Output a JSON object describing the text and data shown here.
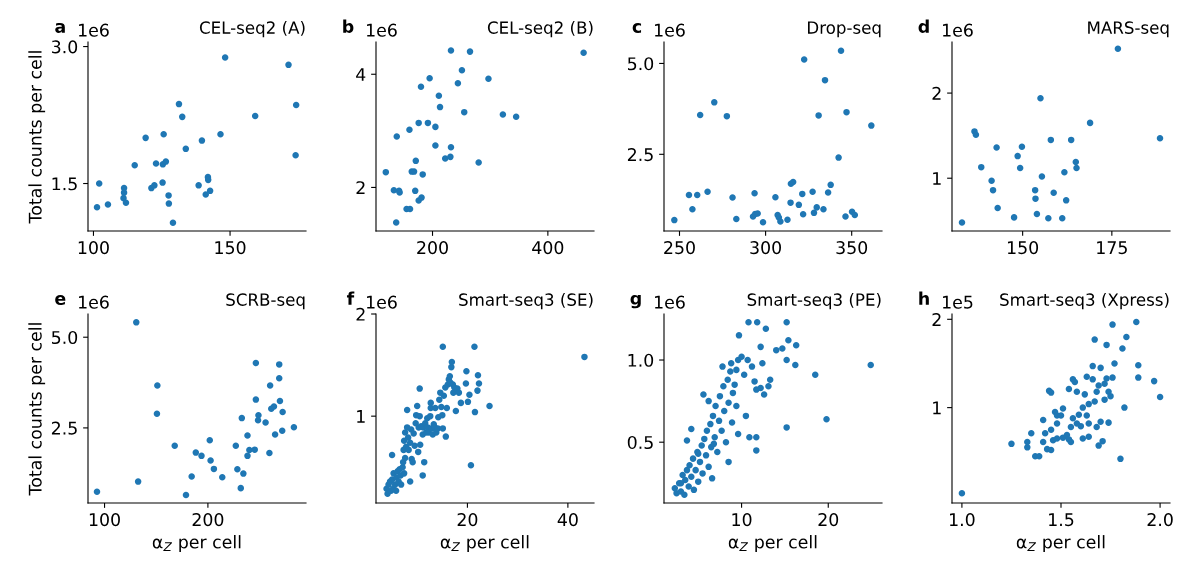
{
  "chart_data": [
    {
      "type": "scatter",
      "title": "CEL-seq2 (A)",
      "ylabel": "Total counts per cell",
      "annotations": [
        "a",
        "1e6"
      ],
      "marker": "circle",
      "color": "#1f77b4",
      "grid": false,
      "legend": false,
      "xlim": [
        98,
        177.8
      ],
      "ylim": [
        0.98,
        3.05
      ],
      "xticks": [
        100,
        150
      ],
      "yticks": [
        1.5,
        {
          "value": 3,
          "label": "3.0"
        }
      ],
      "x": [
        101.3,
        102.1,
        105.3,
        111.2,
        111.2,
        111.0,
        111.9,
        115.1,
        119.1,
        121.2,
        122.3,
        122.9,
        125.4,
        125.3,
        125.7,
        126.5,
        127.5,
        127.6,
        129.1,
        131.3,
        132.5,
        133.8,
        138.5,
        139.7,
        141.1,
        141.9,
        142.0,
        142.7,
        146.5,
        148.2,
        159.2,
        171.4,
        174.2,
        174.0
      ],
      "values": [
        1.24,
        1.5,
        1.27,
        1.45,
        1.4,
        1.34,
        1.29,
        1.7,
        2.0,
        1.45,
        1.48,
        1.72,
        1.71,
        1.51,
        2.04,
        1.74,
        1.37,
        1.28,
        1.07,
        2.37,
        2.23,
        1.88,
        1.48,
        1.97,
        1.38,
        1.57,
        1.54,
        1.42,
        2.04,
        2.88,
        2.24,
        2.8,
        2.36,
        1.81
      ]
    },
    {
      "type": "scatter",
      "title": "CEL-seq2 (B)",
      "annotations": [
        "b",
        "1e6"
      ],
      "marker": "circle",
      "color": "#1f77b4",
      "grid": false,
      "legend": false,
      "xlim": [
        102,
        480
      ],
      "ylim": [
        1.23,
        4.57
      ],
      "xticks": [
        200,
        400
      ],
      "yticks": [
        2,
        4
      ],
      "x": [
        119,
        133,
        138,
        142,
        143,
        137,
        155,
        161,
        160,
        164,
        168,
        171,
        170,
        176,
        181,
        183,
        176,
        180,
        192,
        195,
        205,
        205,
        211,
        213,
        222,
        231,
        232,
        232,
        244,
        251,
        255,
        265,
        280,
        297,
        322,
        345,
        462
      ],
      "values": [
        2.27,
        1.95,
        2.9,
        1.94,
        1.91,
        1.38,
        1.62,
        1.62,
        3.02,
        2.28,
        2.28,
        2.47,
        1.94,
        1.77,
        1.82,
        2.23,
        3.14,
        3.78,
        3.14,
        3.93,
        3.07,
        2.74,
        3.62,
        3.42,
        2.51,
        2.54,
        2.71,
        4.42,
        3.84,
        4.07,
        3.33,
        4.4,
        2.44,
        3.92,
        3.29,
        3.25,
        4.38
      ]
    },
    {
      "type": "scatter",
      "title": "Drop-seq",
      "annotations": [
        "c",
        "1e6"
      ],
      "marker": "circle",
      "color": "#1f77b4",
      "grid": false,
      "legend": false,
      "xlim": [
        241,
        367.6
      ],
      "ylim": [
        0.39,
        5.59
      ],
      "xticks": [
        250,
        300,
        350
      ],
      "yticks": [
        2.5,
        {
          "value": 5,
          "label": "5.0"
        }
      ],
      "x": [
        247,
        255.5,
        257.5,
        260.3,
        262,
        266.3,
        270.2,
        277.5,
        280.8,
        283,
        292.7,
        293.6,
        294,
        295.4,
        298.5,
        305.7,
        307,
        307.7,
        308.6,
        312.7,
        314.5,
        314.7,
        316,
        319.3,
        321.3,
        321.8,
        322.4,
        327.3,
        328.1,
        329.7,
        330.8,
        333.6,
        334.5,
        336.3,
        337.8,
        342.4,
        343.8,
        346.4,
        347,
        350.2,
        351.8,
        361.4
      ],
      "values": [
        0.69,
        1.38,
        0.99,
        1.38,
        3.58,
        1.47,
        3.93,
        3.55,
        1.31,
        0.72,
        0.79,
        1.43,
        0.86,
        0.87,
        0.63,
        1.32,
        0.83,
        0.76,
        0.65,
        0.7,
        1.17,
        1.69,
        1.74,
        1.11,
        1.41,
        0.85,
        5.11,
        1.47,
        0.89,
        1.04,
        3.57,
        0.99,
        4.54,
        1.45,
        1.66,
        2.41,
        5.35,
        0.79,
        3.66,
        0.92,
        0.83,
        3.29
      ]
    },
    {
      "type": "scatter",
      "title": "MARS-seq",
      "annotations": [
        "d",
        "1e6"
      ],
      "marker": "circle",
      "color": "#1f77b4",
      "grid": false,
      "legend": false,
      "xlim": [
        130.2,
        191.3
      ],
      "ylim": [
        0.38,
        2.6
      ],
      "xticks": [
        150,
        175
      ],
      "yticks": [
        1,
        2
      ],
      "x": [
        133,
        136.5,
        136.9,
        138.4,
        141.3,
        141.7,
        142.7,
        143,
        147.6,
        148.6,
        149.3,
        149.8,
        153.5,
        153.6,
        154,
        155,
        155.4,
        157.2,
        157.9,
        158.7,
        161.1,
        161.7,
        162.2,
        163.6,
        164.9,
        165.1,
        168.9,
        176.7,
        188.5
      ],
      "values": [
        0.48,
        1.55,
        1.51,
        1.13,
        0.97,
        0.86,
        1.36,
        0.65,
        0.54,
        1.26,
        1.12,
        1.37,
        0.86,
        0.76,
        0.58,
        1.94,
        1.02,
        0.53,
        1.45,
        0.83,
        0.53,
        1.07,
        0.74,
        1.45,
        1.19,
        1.12,
        1.65,
        2.52,
        1.47
      ]
    },
    {
      "type": "scatter",
      "title": "SCRB-seq",
      "xlabel": "α$_{Z}$ per cell",
      "ylabel": "Total counts per cell",
      "annotations": [
        "e",
        "1e6"
      ],
      "marker": "circle",
      "color": "#1f77b4",
      "grid": false,
      "legend": false,
      "xlim": [
        84,
        294.9
      ],
      "ylim": [
        0.43,
        5.64
      ],
      "xticks": [
        100,
        200
      ],
      "yticks": [
        2.5,
        {
          "value": 5,
          "label": "5.0"
        }
      ],
      "x": [
        92.7,
        130.7,
        132.5,
        151.1,
        150.7,
        167.9,
        178.8,
        184.3,
        188.3,
        193.8,
        201.8,
        202.6,
        205.8,
        213.9,
        227,
        228.5,
        231.8,
        232.8,
        234.3,
        238.3,
        238.3,
        240.1,
        245.3,
        246.4,
        246.4,
        248.9,
        248.5,
        255.8,
        259.5,
        260.2,
        261.3,
        263.9,
        265,
        269,
        269,
        269.7,
        272.3,
        271.9,
        283.2
      ],
      "values": [
        0.74,
        5.41,
        1.02,
        3.67,
        2.89,
        2.01,
        0.65,
        1.16,
        1.82,
        1.73,
        2.16,
        1.6,
        1.37,
        1.14,
        2.01,
        1.36,
        0.84,
        2.77,
        1.24,
        2.29,
        1.73,
        1.89,
        1.9,
        4.29,
        3.28,
        2.85,
        2.71,
        2.65,
        1.81,
        3.67,
        3.03,
        3.09,
        2.32,
        4.25,
        3.87,
        3.24,
        2.94,
        2.42,
        2.52
      ]
    },
    {
      "type": "scatter",
      "title": "Smart-seq3 (SE)",
      "xlabel": "α$_{Z}$ per cell",
      "annotations": [
        "f",
        "1e6"
      ],
      "marker": "circle",
      "color": "#1f77b4",
      "grid": false,
      "legend": false,
      "xlim": [
        1.8,
        45.2
      ],
      "ylim": [
        0.15,
        2.0
      ],
      "xticks": [
        20,
        40
      ],
      "yticks": [
        1,
        2
      ],
      "x": [
        3.9,
        4.1,
        4.3,
        4.6,
        4.8,
        5.0,
        5.2,
        5.3,
        5.6,
        5.8,
        5.9,
        6.1,
        6.3,
        6.5,
        6.7,
        6.8,
        7.1,
        7.2,
        7.4,
        7.6,
        5.0,
        7.3,
        7.4,
        7.6,
        7.8,
        8.0,
        8.2,
        8.3,
        8.6,
        8.8,
        8.9,
        9.1,
        9.3,
        9.5,
        9.7,
        9.8,
        10.0,
        10.2,
        10.3,
        10.5,
        10.6,
        10.8,
        11.1,
        11.2,
        11.4,
        11.6,
        11.8,
        12.0,
        12.1,
        12.3,
        12.6,
        12.7,
        12.9,
        13.1,
        13.3,
        13.5,
        13.6,
        13.8,
        14.1,
        14.2,
        14.4,
        14.6,
        14.8,
        15.0,
        15.1,
        15.3,
        15.6,
        15.7,
        15.9,
        16.1,
        16.3,
        16.5,
        16.6,
        16.8,
        16.9,
        17.1,
        17.2,
        17.4,
        17.7,
        18.0,
        15.1,
        18.3,
        18.7,
        19.7,
        19.8,
        20.1,
        20.4,
        20.7,
        21.4,
        21.5,
        22.0,
        22.1,
        22.3,
        24.4,
        43.3,
        8.0,
        10.5,
        12.7,
        8.6,
        11.1
      ],
      "values": [
        0.29,
        0.24,
        0.33,
        0.36,
        0.27,
        0.38,
        0.29,
        0.44,
        0.33,
        0.27,
        0.4,
        0.46,
        0.36,
        0.48,
        0.42,
        0.33,
        0.5,
        0.55,
        0.44,
        0.59,
        0.62,
        0.67,
        0.76,
        0.84,
        0.7,
        0.89,
        0.79,
        0.67,
        0.74,
        0.87,
        0.58,
        0.55,
        0.83,
        0.71,
        0.93,
        1.01,
        1.1,
        0.65,
        0.89,
        1.0,
        0.72,
        0.9,
        0.82,
        0.89,
        0.55,
        0.93,
        0.84,
        0.98,
        0.89,
        0.84,
        1.0,
        1.08,
        0.88,
        0.82,
        0.92,
        0.89,
        1.08,
        0.84,
        0.88,
        0.99,
        1.16,
        1.23,
        1.09,
        1.01,
        0.88,
        1.2,
        1.28,
        0.8,
        1.08,
        1.31,
        1.36,
        1.39,
        1.33,
        1.48,
        1.53,
        1.31,
        1.23,
        1.28,
        1.05,
        1.27,
        1.68,
        1.23,
        1.13,
        1.32,
        1.44,
        1.14,
        1.21,
        0.52,
        1.68,
        1.04,
        1.25,
        1.4,
        1.32,
        1.1,
        1.58,
        1.06,
        1.27,
        1.13,
        0.36,
        0.42
      ]
    },
    {
      "type": "scatter",
      "title": "Smart-seq3 (PE)",
      "xlabel": "α$_{Z}$ per cell",
      "annotations": [
        "g",
        "1e6"
      ],
      "marker": "circle",
      "color": "#1f77b4",
      "grid": false,
      "legend": false,
      "xlim": [
        1.05,
        26.2
      ],
      "ylim": [
        0.13,
        1.28
      ],
      "xticks": [
        10,
        20
      ],
      "yticks": [
        0.5,
        {
          "value": 1,
          "label": "1.0"
        }
      ],
      "x": [
        2.3,
        2.5,
        2.8,
        3.0,
        3.2,
        3.4,
        3.5,
        3.7,
        3.9,
        4.0,
        4.2,
        4.4,
        4.5,
        4.7,
        4.9,
        5.0,
        5.2,
        5.4,
        5.5,
        5.7,
        5.9,
        6.0,
        6.2,
        6.4,
        6.5,
        6.7,
        6.9,
        7.0,
        7.2,
        7.4,
        7.5,
        7.7,
        7.9,
        8.0,
        8.2,
        8.4,
        8.5,
        8.7,
        8.9,
        9.0,
        9.2,
        9.4,
        9.6,
        9.7,
        10.0,
        10.3,
        10.5,
        10.7,
        10.8,
        11.2,
        11.5,
        11.7,
        11.7,
        11.8,
        12.2,
        12.4,
        12.6,
        12.8,
        13.1,
        13.3,
        14.0,
        14.7,
        15.2,
        15.2,
        15.4,
        16.3,
        16.2,
        15.2,
        18.5,
        19.8,
        24.9,
        4.2,
        3.7,
        5.6,
        6.2,
        8.5,
        6.6,
        9.6,
        10.9,
        7.8,
        8.8,
        5.0,
        3.0,
        6.8,
        12.2,
        11.7,
        9.4
      ],
      "values": [
        0.22,
        0.19,
        0.25,
        0.2,
        0.3,
        0.18,
        0.27,
        0.33,
        0.23,
        0.36,
        0.29,
        0.4,
        0.21,
        0.33,
        0.44,
        0.26,
        0.38,
        0.48,
        0.31,
        0.52,
        0.42,
        0.57,
        0.35,
        0.61,
        0.47,
        0.66,
        0.53,
        0.72,
        0.44,
        0.63,
        0.78,
        0.57,
        0.84,
        0.69,
        0.5,
        0.88,
        0.74,
        0.93,
        0.62,
        0.8,
        0.85,
        0.72,
        1.0,
        1.15,
        1.02,
        0.91,
        0.66,
        1.0,
        1.23,
        0.96,
        0.87,
        0.53,
        0.45,
        1.23,
        1.08,
        0.98,
        0.79,
        1.19,
        0.84,
        0.88,
        1.06,
        1.07,
        1.23,
        1.0,
        1.12,
        1.09,
        0.97,
        0.59,
        0.91,
        0.64,
        0.97,
        0.58,
        0.51,
        0.79,
        0.75,
        0.38,
        0.28,
        0.55,
        0.53,
        0.96,
        0.98,
        0.43,
        0.25,
        0.49,
        0.83,
        0.82,
        0.94
      ]
    },
    {
      "type": "scatter",
      "title": "Smart-seq3 (Xpress)",
      "xlabel": "α$_{Z}$ per cell",
      "annotations": [
        "h",
        "1e5"
      ],
      "marker": "circle",
      "color": "#1f77b4",
      "grid": false,
      "legend": false,
      "xlim": [
        0.95,
        2.05
      ],
      "ylim": [
        -0.08,
        2.06
      ],
      "xticks": [
        {
          "value": 1,
          "label": "1.0"
        },
        1.5,
        {
          "value": 2,
          "label": "2.0"
        }
      ],
      "yticks": [
        1,
        2
      ],
      "x": [
        1.0,
        1.25,
        1.33,
        1.33,
        1.35,
        1.37,
        1.39,
        1.41,
        1.41,
        1.42,
        1.43,
        1.44,
        1.45,
        1.45,
        1.45,
        1.46,
        1.47,
        1.48,
        1.48,
        1.48,
        1.5,
        1.51,
        1.51,
        1.53,
        1.54,
        1.54,
        1.55,
        1.55,
        1.56,
        1.56,
        1.57,
        1.58,
        1.58,
        1.59,
        1.6,
        1.61,
        1.61,
        1.62,
        1.63,
        1.63,
        1.64,
        1.64,
        1.64,
        1.66,
        1.66,
        1.67,
        1.67,
        1.68,
        1.68,
        1.69,
        1.69,
        1.7,
        1.7,
        1.71,
        1.72,
        1.72,
        1.73,
        1.73,
        1.74,
        1.74,
        1.75,
        1.76,
        1.76,
        1.77,
        1.81,
        1.82,
        1.8,
        1.83,
        1.88,
        1.89,
        1.89,
        1.97,
        2.0
      ],
      "values": [
        0.03,
        0.59,
        0.61,
        0.55,
        0.71,
        0.45,
        0.45,
        0.61,
        0.86,
        0.71,
        0.53,
        1.19,
        0.52,
        1.17,
        0.75,
        0.63,
        0.95,
        0.65,
        0.82,
        0.91,
        0.91,
        0.99,
        0.66,
        0.69,
        1.21,
        0.64,
        0.61,
        0.78,
        0.88,
        1.32,
        1.29,
        1.18,
        0.82,
        0.92,
        0.79,
        1.0,
        0.65,
        1.15,
        1.35,
        0.91,
        0.82,
        0.67,
        1.04,
        1.32,
        1.47,
        1.77,
        1.07,
        1.18,
        0.78,
        0.57,
        1.25,
        0.84,
        1.45,
        0.62,
        1.27,
        1.09,
        1.71,
        1.33,
        0.83,
        1.18,
        1.13,
        1.34,
        1.94,
        1.5,
        1.67,
        1.0,
        0.42,
        1.8,
        1.97,
        1.48,
        1.34,
        1.3,
        1.12
      ]
    }
  ]
}
